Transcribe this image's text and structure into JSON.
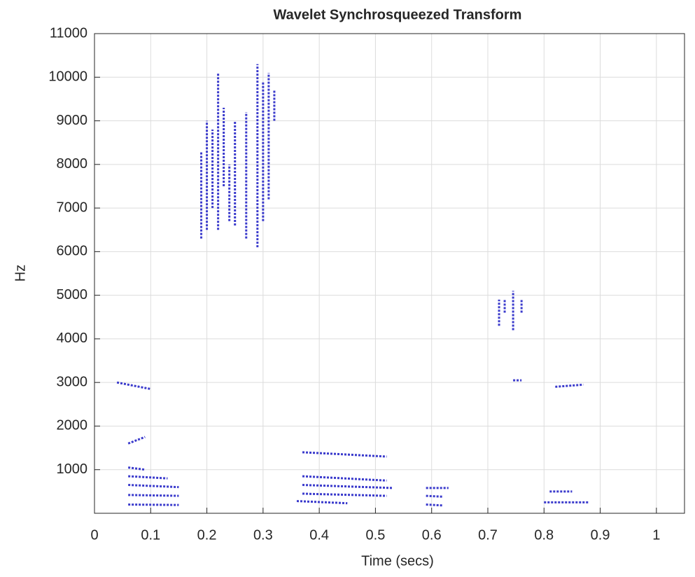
{
  "chart_data": {
    "type": "ridges",
    "title": "Wavelet Synchrosqueezed Transform",
    "x_label": "Time (secs)",
    "y_label": "Hz",
    "xlim": [
      0,
      1.05
    ],
    "ylim": [
      0,
      11000
    ],
    "xticks": [
      0,
      0.1,
      0.2,
      0.3,
      0.4,
      0.5,
      0.6,
      0.7,
      0.8,
      0.9,
      1
    ],
    "yticks": [
      1000,
      2000,
      3000,
      4000,
      5000,
      6000,
      7000,
      8000,
      9000,
      10000,
      11000
    ],
    "grid": true,
    "color": "#3a3acc",
    "segments": [
      {
        "x": [
          0.06,
          0.15
        ],
        "values": [
          200,
          190
        ]
      },
      {
        "x": [
          0.06,
          0.15
        ],
        "values": [
          420,
          400
        ]
      },
      {
        "x": [
          0.06,
          0.15
        ],
        "values": [
          650,
          600
        ]
      },
      {
        "x": [
          0.06,
          0.13
        ],
        "values": [
          850,
          800
        ]
      },
      {
        "x": [
          0.06,
          0.09
        ],
        "values": [
          1050,
          1000
        ]
      },
      {
        "x": [
          0.06,
          0.09
        ],
        "values": [
          1600,
          1750
        ]
      },
      {
        "x": [
          0.04,
          0.1
        ],
        "values": [
          3000,
          2850
        ]
      },
      {
        "x": [
          0.37,
          0.52
        ],
        "values": [
          1400,
          1300
        ]
      },
      {
        "x": [
          0.37,
          0.52
        ],
        "values": [
          850,
          750
        ]
      },
      {
        "x": [
          0.37,
          0.53
        ],
        "values": [
          650,
          580
        ]
      },
      {
        "x": [
          0.37,
          0.52
        ],
        "values": [
          450,
          400
        ]
      },
      {
        "x": [
          0.36,
          0.45
        ],
        "values": [
          280,
          230
        ]
      },
      {
        "x": [
          0.59,
          0.63
        ],
        "values": [
          580,
          580
        ]
      },
      {
        "x": [
          0.59,
          0.62
        ],
        "values": [
          400,
          380
        ]
      },
      {
        "x": [
          0.59,
          0.62
        ],
        "values": [
          200,
          180
        ]
      },
      {
        "x": [
          0.81,
          0.85
        ],
        "values": [
          500,
          500
        ]
      },
      {
        "x": [
          0.8,
          0.88
        ],
        "values": [
          250,
          250
        ]
      },
      {
        "x": [
          0.82,
          0.87
        ],
        "values": [
          2900,
          2950
        ]
      },
      {
        "x": [
          0.19,
          0.19
        ],
        "values": [
          6300,
          8300
        ]
      },
      {
        "x": [
          0.2,
          0.2
        ],
        "values": [
          6500,
          9000
        ]
      },
      {
        "x": [
          0.21,
          0.21
        ],
        "values": [
          7000,
          8800
        ]
      },
      {
        "x": [
          0.22,
          0.22
        ],
        "values": [
          6500,
          10100
        ]
      },
      {
        "x": [
          0.23,
          0.23
        ],
        "values": [
          7500,
          9300
        ]
      },
      {
        "x": [
          0.24,
          0.24
        ],
        "values": [
          6700,
          8000
        ]
      },
      {
        "x": [
          0.25,
          0.25
        ],
        "values": [
          6600,
          9000
        ]
      },
      {
        "x": [
          0.27,
          0.27
        ],
        "values": [
          6300,
          9200
        ]
      },
      {
        "x": [
          0.29,
          0.29
        ],
        "values": [
          6100,
          10300
        ]
      },
      {
        "x": [
          0.3,
          0.3
        ],
        "values": [
          6700,
          9900
        ]
      },
      {
        "x": [
          0.31,
          0.31
        ],
        "values": [
          7200,
          10100
        ]
      },
      {
        "x": [
          0.32,
          0.32
        ],
        "values": [
          9000,
          9700
        ]
      },
      {
        "x": [
          0.72,
          0.72
        ],
        "values": [
          4300,
          4900
        ]
      },
      {
        "x": [
          0.73,
          0.73
        ],
        "values": [
          4600,
          4900
        ]
      },
      {
        "x": [
          0.745,
          0.745
        ],
        "values": [
          4200,
          5100
        ]
      },
      {
        "x": [
          0.76,
          0.76
        ],
        "values": [
          4600,
          4900
        ]
      },
      {
        "x": [
          0.745,
          0.76
        ],
        "values": [
          3050,
          3050
        ]
      }
    ]
  }
}
